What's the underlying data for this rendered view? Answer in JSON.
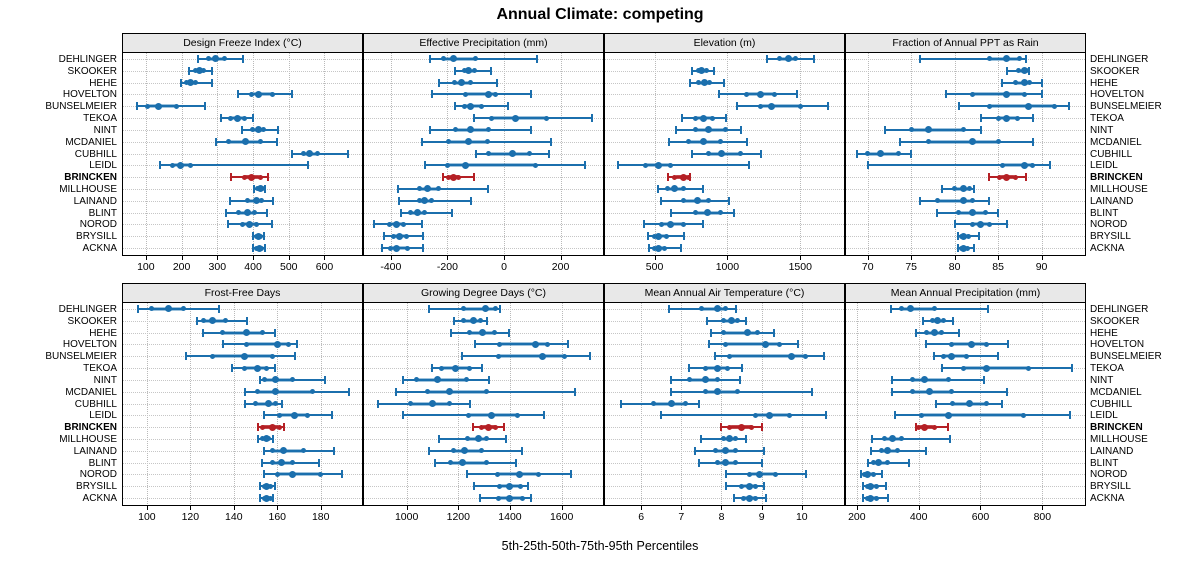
{
  "chart_data": {
    "type": "scatter",
    "subtype": "5-25-50-75-95 percentile interval dot plot (trellis, 2x4 panels)",
    "title": "Annual Climate: competing",
    "caption": "5th-25th-50th-75th-95th Percentiles",
    "legend_position": "none",
    "grid": "dotted",
    "stations": [
      "DEHLINGER",
      "SKOOKER",
      "HEHE",
      "HOVELTON",
      "BUNSELMEIER",
      "TEKOA",
      "NINT",
      "MCDANIEL",
      "CUBHILL",
      "LEIDL",
      "BRINCKEN",
      "MILLHOUSE",
      "LAINAND",
      "BLINT",
      "NOROD",
      "BRYSILL",
      "ACKNA"
    ],
    "highlight_station": "BRINCKEN",
    "colors": {
      "normal": "#1b6fad",
      "normal_band": "rgba(27,111,173,0.42)",
      "highlight": "#b52025",
      "highlight_band": "rgba(181,32,37,0.82)",
      "strip_bg": "#e8e8e8",
      "grid": "#bdbdbd",
      "border": "#000000"
    },
    "panels": [
      {
        "title": "Design Freeze Index (°C)",
        "grid_row": 0,
        "grid_col": 0,
        "xlim": [
          36,
          705
        ],
        "ticks": [
          100,
          200,
          300,
          400,
          500,
          600
        ],
        "values": [
          [
            245,
            275,
            295,
            320,
            372
          ],
          [
            222,
            240,
            250,
            262,
            285
          ],
          [
            198,
            214,
            225,
            240,
            285
          ],
          [
            358,
            395,
            415,
            455,
            510
          ],
          [
            75,
            105,
            135,
            185,
            265
          ],
          [
            310,
            338,
            357,
            375,
            400
          ],
          [
            370,
            398,
            415,
            430,
            470
          ],
          [
            295,
            330,
            378,
            420,
            468
          ],
          [
            508,
            540,
            558,
            580,
            665
          ],
          [
            140,
            175,
            197,
            225,
            555
          ],
          [
            338,
            375,
            397,
            420,
            442
          ],
          [
            403,
            413,
            420,
            426,
            433
          ],
          [
            335,
            385,
            410,
            425,
            455
          ],
          [
            325,
            360,
            385,
            405,
            440
          ],
          [
            330,
            370,
            390,
            410,
            452
          ],
          [
            400,
            410,
            416,
            422,
            430
          ],
          [
            400,
            410,
            418,
            425,
            433
          ]
        ]
      },
      {
        "title": "Effective Precipitation (mm)",
        "grid_row": 0,
        "grid_col": 1,
        "xlim": [
          -495,
          350
        ],
        "ticks": [
          -400,
          -200,
          0,
          200
        ],
        "values": [
          [
            -260,
            -215,
            -180,
            -100,
            115
          ],
          [
            -175,
            -140,
            -125,
            -105,
            -45
          ],
          [
            -230,
            -175,
            -150,
            -120,
            -25
          ],
          [
            -255,
            -135,
            -55,
            -30,
            95
          ],
          [
            -175,
            -140,
            -120,
            -80,
            15
          ],
          [
            -105,
            -45,
            40,
            150,
            310
          ],
          [
            -260,
            -170,
            -120,
            -55,
            95
          ],
          [
            -290,
            -195,
            -125,
            -60,
            165
          ],
          [
            -100,
            -55,
            30,
            90,
            160
          ],
          [
            -280,
            -200,
            -135,
            110,
            285
          ],
          [
            -215,
            -195,
            -180,
            -160,
            -105
          ],
          [
            -375,
            -300,
            -270,
            -230,
            -55
          ],
          [
            -370,
            -300,
            -280,
            -255,
            -115
          ],
          [
            -365,
            -330,
            -305,
            -280,
            -185
          ],
          [
            -460,
            -405,
            -380,
            -355,
            -290
          ],
          [
            -425,
            -390,
            -370,
            -345,
            -285
          ],
          [
            -430,
            -400,
            -380,
            -340,
            -285
          ]
        ]
      },
      {
        "title": "Elevation (m)",
        "grid_row": 0,
        "grid_col": 2,
        "xlim": [
          160,
          1800
        ],
        "ticks": [
          500,
          1000,
          1500
        ],
        "values": [
          [
            1270,
            1360,
            1420,
            1470,
            1595
          ],
          [
            755,
            800,
            820,
            855,
            910
          ],
          [
            745,
            800,
            840,
            880,
            975
          ],
          [
            940,
            1130,
            1225,
            1320,
            1475
          ],
          [
            1065,
            1230,
            1305,
            1500,
            1690
          ],
          [
            690,
            780,
            835,
            900,
            990
          ],
          [
            650,
            780,
            870,
            990,
            1090
          ],
          [
            600,
            735,
            835,
            955,
            1135
          ],
          [
            760,
            870,
            960,
            1090,
            1230
          ],
          [
            250,
            440,
            525,
            610,
            1150
          ],
          [
            595,
            640,
            700,
            730,
            740
          ],
          [
            525,
            590,
            640,
            700,
            830
          ],
          [
            545,
            700,
            795,
            870,
            1010
          ],
          [
            610,
            780,
            865,
            950,
            1045
          ],
          [
            430,
            545,
            610,
            700,
            830
          ],
          [
            455,
            500,
            525,
            580,
            705
          ],
          [
            460,
            500,
            525,
            565,
            680
          ]
        ]
      },
      {
        "title": "Fraction of Annual PPT as Rain",
        "grid_row": 0,
        "grid_col": 3,
        "xlim": [
          67.5,
          95
        ],
        "ticks": [
          70,
          75,
          80,
          85,
          90
        ],
        "values": [
          [
            76,
            84,
            86,
            87.5,
            88.2
          ],
          [
            86,
            87.4,
            88,
            88.3,
            88.6
          ],
          [
            85.5,
            87,
            88,
            88.6,
            90
          ],
          [
            79,
            82,
            86,
            88,
            90
          ],
          [
            80.5,
            84,
            88.5,
            91.5,
            93.2
          ],
          [
            83,
            85,
            86,
            87.2,
            89
          ],
          [
            72,
            75,
            77,
            81,
            83
          ],
          [
            73.7,
            77,
            82,
            85,
            89
          ],
          [
            68.8,
            70,
            71.5,
            73.5,
            75
          ],
          [
            70,
            85.5,
            88,
            89,
            91
          ],
          [
            84,
            85.2,
            86,
            87,
            88.2
          ],
          [
            78.5,
            80,
            81,
            81.7,
            82.2
          ],
          [
            76,
            78,
            81,
            82,
            84
          ],
          [
            78,
            80.5,
            82,
            83.5,
            85
          ],
          [
            80,
            82,
            83,
            84,
            86
          ],
          [
            80.4,
            80.8,
            81,
            81.6,
            82.8
          ],
          [
            80.4,
            80.8,
            81,
            81.5,
            82.2
          ]
        ]
      },
      {
        "title": "Frost-Free Days",
        "grid_row": 1,
        "grid_col": 0,
        "xlim": [
          89,
          199
        ],
        "ticks": [
          100,
          120,
          140,
          160,
          180
        ],
        "values": [
          [
            96,
            102,
            110,
            117,
            133
          ],
          [
            123,
            126,
            130,
            136,
            146
          ],
          [
            126,
            135,
            146,
            153,
            159
          ],
          [
            135,
            146,
            160,
            165,
            169
          ],
          [
            118,
            130,
            145,
            158,
            168
          ],
          [
            139,
            145,
            151,
            155,
            159
          ],
          [
            152,
            154,
            159,
            167,
            182
          ],
          [
            145,
            151,
            159,
            176,
            193
          ],
          [
            145,
            150,
            156,
            159,
            162
          ],
          [
            154,
            161,
            168,
            174,
            185
          ],
          [
            151,
            153,
            158,
            161,
            163
          ],
          [
            151,
            153,
            155,
            156,
            158
          ],
          [
            154,
            158,
            163,
            172,
            186
          ],
          [
            153,
            158,
            162,
            167,
            179
          ],
          [
            154,
            160,
            167,
            180,
            190
          ],
          [
            152,
            154,
            155,
            157,
            159
          ],
          [
            152,
            154,
            155,
            157,
            158
          ]
        ]
      },
      {
        "title": "Growing Degree Days (°C)",
        "grid_row": 1,
        "grid_col": 1,
        "xlim": [
          835,
          1760
        ],
        "ticks": [
          1000,
          1200,
          1400,
          1600
        ],
        "values": [
          [
            1085,
            1220,
            1305,
            1345,
            1360
          ],
          [
            1185,
            1220,
            1260,
            1285,
            1310
          ],
          [
            1170,
            1245,
            1295,
            1340,
            1395
          ],
          [
            1265,
            1360,
            1500,
            1545,
            1625
          ],
          [
            1215,
            1355,
            1525,
            1610,
            1710
          ],
          [
            1100,
            1135,
            1190,
            1245,
            1290
          ],
          [
            985,
            1040,
            1120,
            1230,
            1320
          ],
          [
            960,
            1080,
            1165,
            1310,
            1650
          ],
          [
            890,
            1015,
            1100,
            1165,
            1245
          ],
          [
            985,
            1240,
            1330,
            1430,
            1530
          ],
          [
            1255,
            1290,
            1315,
            1345,
            1375
          ],
          [
            1125,
            1235,
            1280,
            1310,
            1385
          ],
          [
            1085,
            1180,
            1225,
            1290,
            1445
          ],
          [
            1110,
            1170,
            1215,
            1310,
            1425
          ],
          [
            1235,
            1350,
            1435,
            1510,
            1635
          ],
          [
            1260,
            1360,
            1400,
            1440,
            1470
          ],
          [
            1285,
            1355,
            1400,
            1450,
            1480
          ]
        ]
      },
      {
        "title": "Mean Annual Air Temperature (°C)",
        "grid_row": 1,
        "grid_col": 2,
        "xlim": [
          5.1,
          11.05
        ],
        "ticks": [
          6,
          7,
          8,
          9,
          10
        ],
        "values": [
          [
            6.7,
            7.5,
            7.9,
            8.1,
            8.35
          ],
          [
            7.65,
            8.05,
            8.25,
            8.4,
            8.6
          ],
          [
            7.75,
            8.05,
            8.65,
            8.9,
            9.3
          ],
          [
            7.7,
            8.1,
            9.1,
            9.45,
            9.9
          ],
          [
            7.85,
            8.2,
            9.75,
            10.1,
            10.55
          ],
          [
            7.2,
            7.6,
            7.9,
            8.15,
            8.5
          ],
          [
            6.75,
            7.2,
            7.6,
            7.9,
            8.45
          ],
          [
            6.75,
            7.6,
            7.9,
            8.4,
            10.25
          ],
          [
            5.5,
            6.3,
            6.75,
            7.1,
            7.45
          ],
          [
            6.5,
            8.85,
            9.2,
            9.7,
            10.6
          ],
          [
            8.0,
            8.2,
            8.5,
            8.75,
            9.0
          ],
          [
            7.5,
            8.05,
            8.2,
            8.35,
            8.6
          ],
          [
            7.35,
            7.85,
            8.1,
            8.35,
            9.05
          ],
          [
            7.45,
            7.9,
            8.1,
            8.35,
            9.0
          ],
          [
            8.1,
            8.7,
            8.95,
            9.35,
            10.1
          ],
          [
            8.1,
            8.5,
            8.7,
            8.85,
            9.05
          ],
          [
            8.3,
            8.55,
            8.7,
            8.85,
            9.1
          ]
        ]
      },
      {
        "title": "Mean Annual Precipitation (mm)",
        "grid_row": 1,
        "grid_col": 3,
        "xlim": [
          165,
          938
        ],
        "ticks": [
          200,
          400,
          600,
          800
        ],
        "values": [
          [
            310,
            345,
            375,
            450,
            625
          ],
          [
            415,
            445,
            460,
            480,
            510
          ],
          [
            390,
            425,
            450,
            475,
            530
          ],
          [
            425,
            505,
            570,
            620,
            690
          ],
          [
            450,
            480,
            505,
            555,
            655
          ],
          [
            475,
            545,
            620,
            755,
            895
          ],
          [
            315,
            380,
            420,
            495,
            610
          ],
          [
            315,
            380,
            435,
            505,
            685
          ],
          [
            455,
            510,
            565,
            620,
            670
          ],
          [
            325,
            410,
            495,
            740,
            890
          ],
          [
            390,
            400,
            420,
            450,
            495
          ],
          [
            250,
            290,
            315,
            345,
            500
          ],
          [
            245,
            280,
            300,
            330,
            425
          ],
          [
            235,
            255,
            270,
            300,
            370
          ],
          [
            215,
            225,
            235,
            255,
            280
          ],
          [
            220,
            235,
            245,
            265,
            295
          ],
          [
            220,
            235,
            245,
            265,
            300
          ]
        ]
      }
    ]
  }
}
